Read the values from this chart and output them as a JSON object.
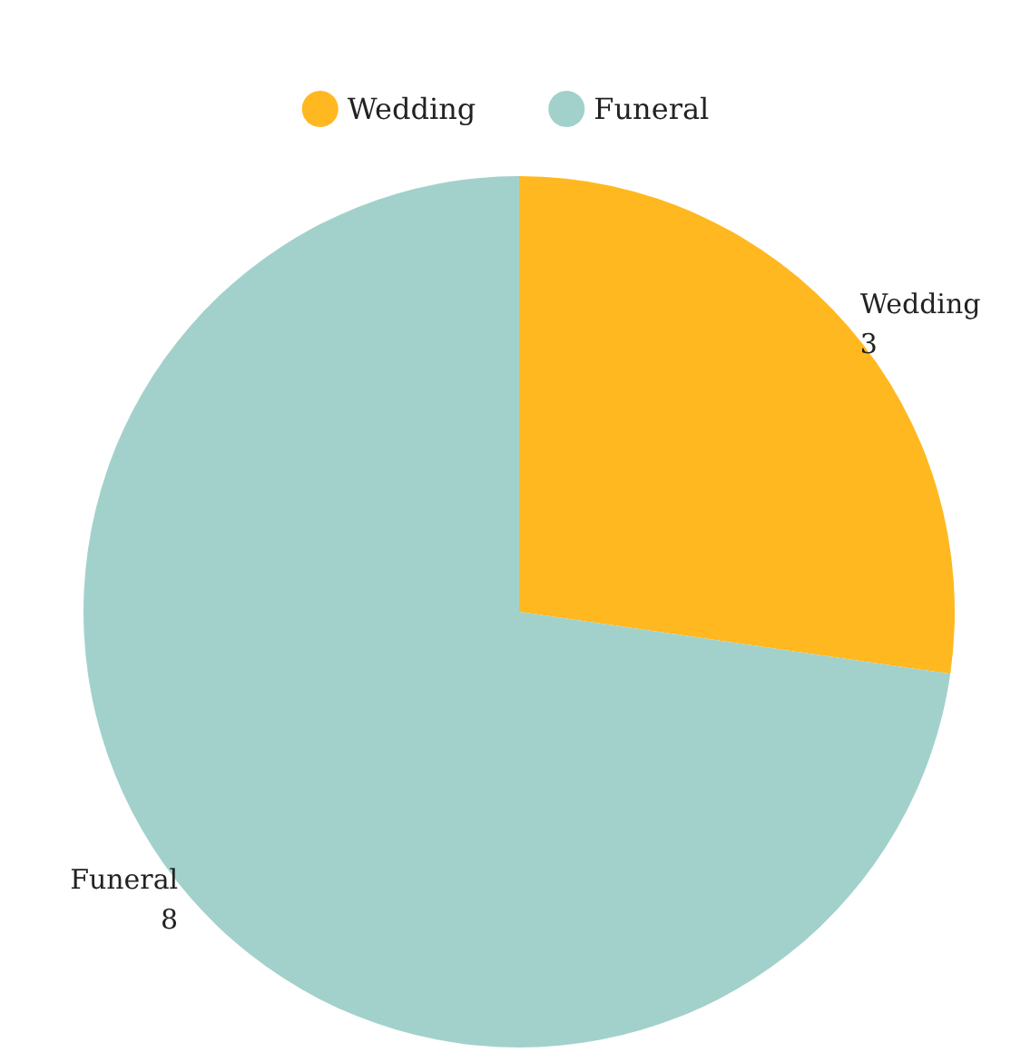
{
  "chart_data": {
    "type": "pie",
    "categories": [
      "Wedding",
      "Funeral"
    ],
    "values": [
      3,
      8
    ],
    "colors": [
      "#ffb81f",
      "#a2d1cb"
    ],
    "legend": "top",
    "data_labels": true
  }
}
